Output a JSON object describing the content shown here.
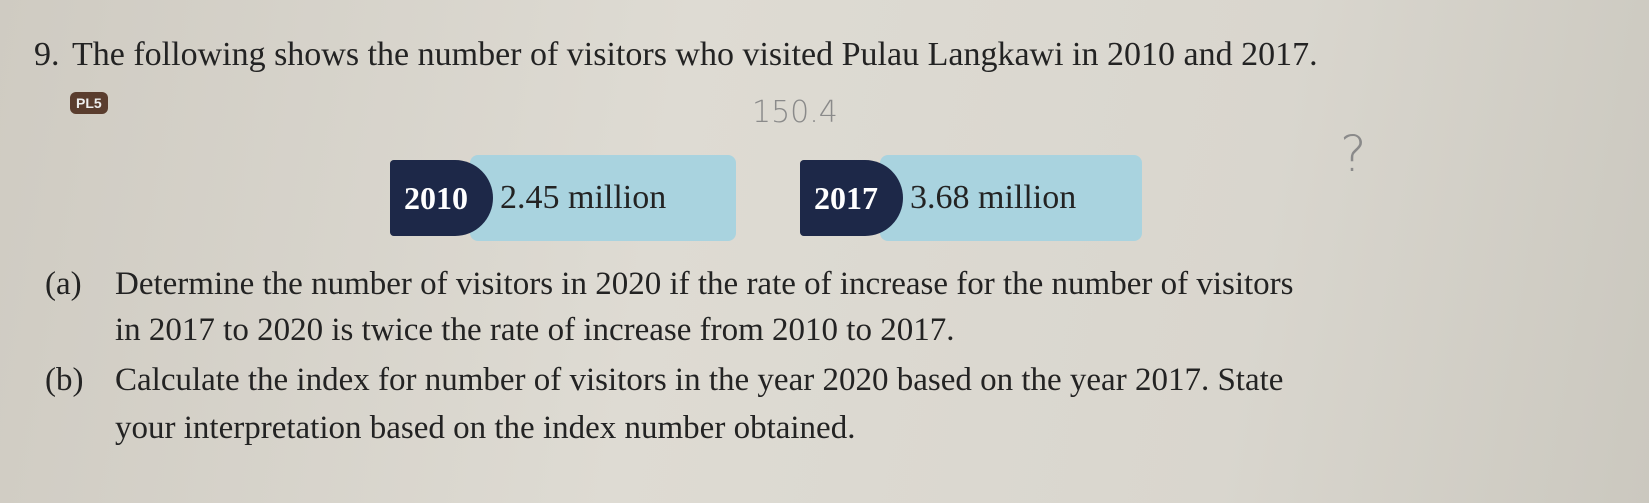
{
  "question": {
    "number": "9.",
    "text": "The following shows the number of visitors who visited Pulau Langkawi in 2010 and 2017.",
    "level": "PL5"
  },
  "data_boxes": [
    {
      "year": "2010",
      "value": "2.45 million"
    },
    {
      "year": "2017",
      "value": "3.68 million"
    }
  ],
  "parts": [
    {
      "label": "(a)",
      "lines": [
        "Determine the number of visitors in 2020 if the rate of increase for the number of visitors",
        "in 2017 to 2020 is twice the rate of increase from 2010 to 2017."
      ]
    },
    {
      "label": "(b)",
      "lines": [
        "Calculate the index for number of visitors in the year 2020 based on the year 2017. State",
        "your interpretation based on the index number obtained."
      ]
    }
  ],
  "handwriting": [
    "150.4",
    "?"
  ]
}
